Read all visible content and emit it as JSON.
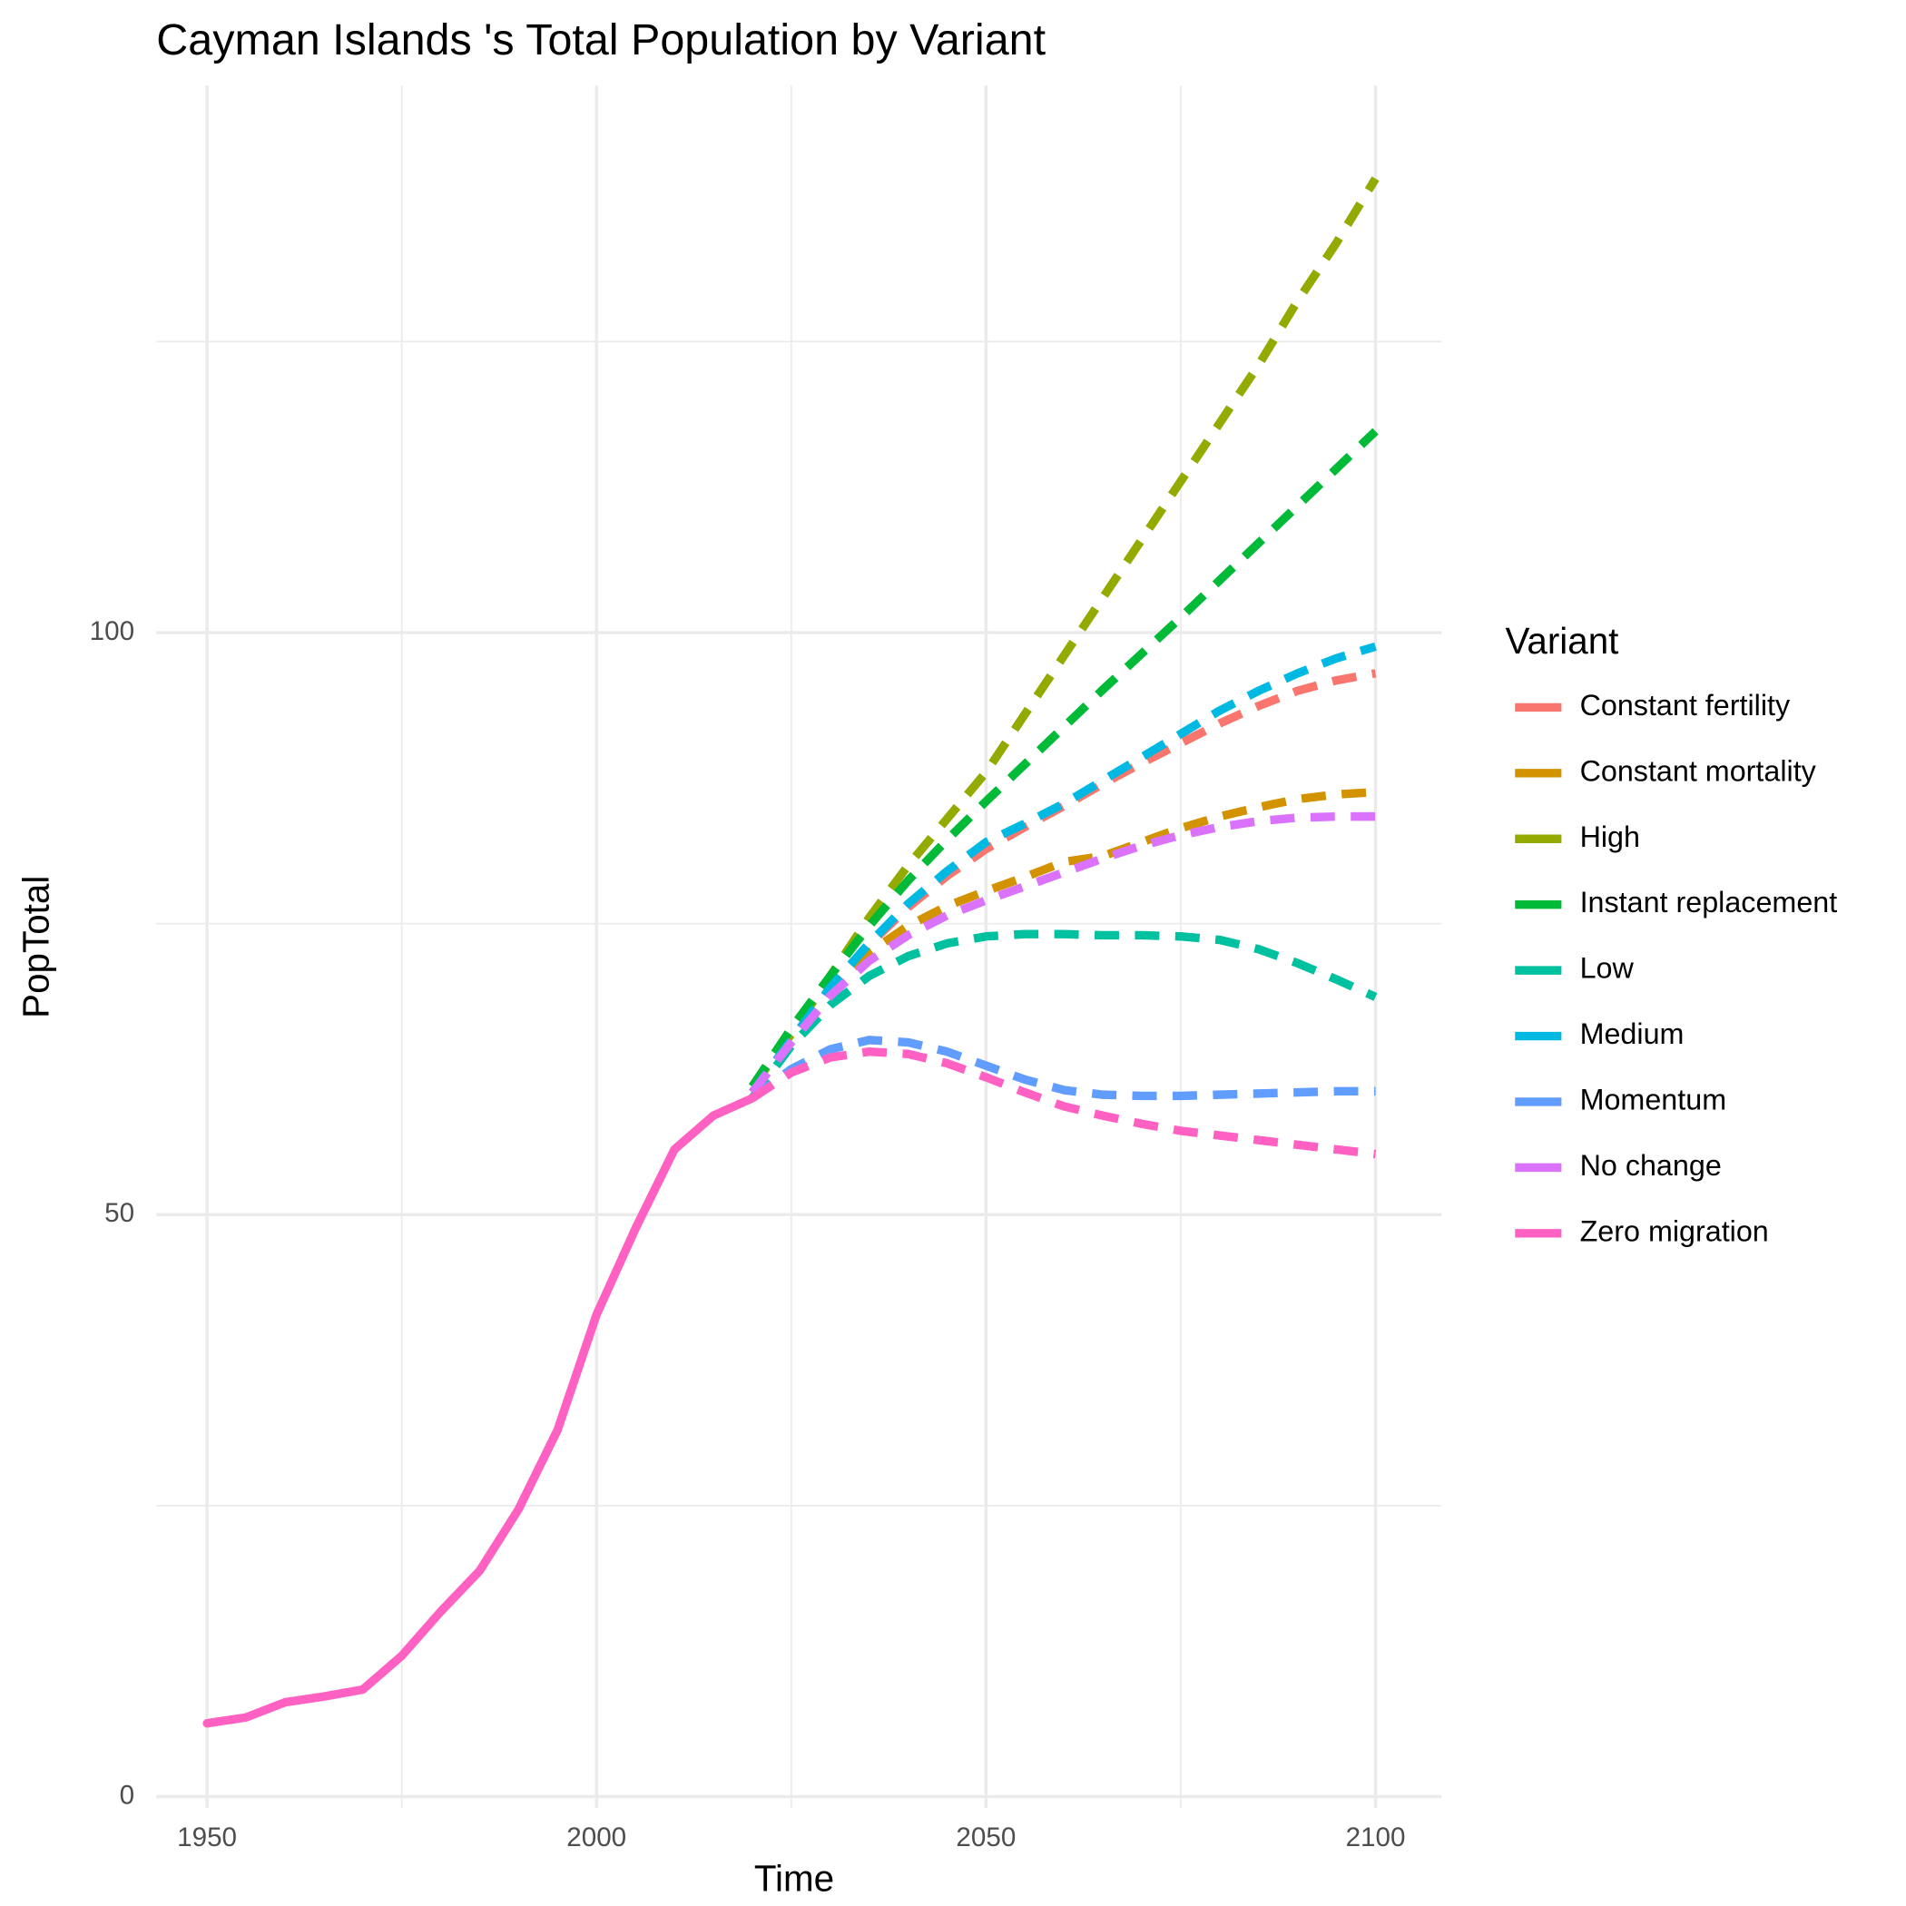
{
  "chart_data": {
    "type": "line",
    "title": "Cayman Islands 's Total Population by Variant",
    "x_label": "Time",
    "y_label": "PopTotal",
    "legend_title": "Variant",
    "legend_position": "right",
    "grid": true,
    "dashed_from": 2020,
    "xlim": [
      1943.5,
      2108.5
    ],
    "xticks": [
      1950,
      2000,
      2050,
      2100
    ],
    "xminor": [
      1975,
      2025,
      2075
    ],
    "ylim": [
      -1,
      147
    ],
    "yticks": [
      0,
      50,
      100
    ],
    "yminor": [
      25,
      75,
      125
    ],
    "x": [
      1950,
      1955,
      1960,
      1965,
      1970,
      1975,
      1980,
      1985,
      1990,
      1995,
      2000,
      2005,
      2010,
      2015,
      2020,
      2025,
      2030,
      2035,
      2040,
      2045,
      2050,
      2055,
      2060,
      2065,
      2070,
      2075,
      2080,
      2085,
      2090,
      2095,
      2100
    ],
    "series": [
      {
        "name": "Constant fertility",
        "color": "#F8766D",
        "values": [
          null,
          null,
          null,
          null,
          null,
          null,
          null,
          null,
          null,
          null,
          null,
          null,
          null,
          null,
          60.5,
          65,
          69.5,
          73.2,
          76.4,
          79.1,
          81.4,
          83.3,
          85.1,
          87,
          88.8,
          90.5,
          92.2,
          93.7,
          95,
          95.9,
          96.5
        ]
      },
      {
        "name": "Constant mortality",
        "color": "#D39200",
        "values": [
          null,
          null,
          null,
          null,
          null,
          null,
          null,
          null,
          null,
          null,
          null,
          null,
          null,
          null,
          60.5,
          65,
          69.3,
          72.5,
          74.8,
          76.5,
          77.8,
          79,
          80.3,
          80.8,
          82,
          83.2,
          84.2,
          85,
          85.7,
          86.1,
          86.3
        ]
      },
      {
        "name": "High",
        "color": "#93AA00",
        "values": [
          null,
          null,
          null,
          null,
          null,
          null,
          null,
          null,
          null,
          null,
          null,
          null,
          null,
          null,
          61,
          65.5,
          70.5,
          75.5,
          80,
          84,
          88,
          93,
          98,
          103,
          108,
          113,
          118,
          123,
          128.5,
          133.5,
          139
        ]
      },
      {
        "name": "Instant replacement",
        "color": "#00BA38",
        "values": [
          null,
          null,
          null,
          null,
          null,
          null,
          null,
          null,
          null,
          null,
          null,
          null,
          null,
          null,
          61,
          66,
          70.5,
          74.8,
          78.7,
          82.2,
          85.5,
          88.7,
          91.9,
          95.1,
          98.2,
          101.3,
          104.5,
          107.7,
          110.9,
          114.1,
          117.3
        ]
      },
      {
        "name": "Low",
        "color": "#00C19F",
        "values": [
          null,
          null,
          null,
          null,
          null,
          null,
          null,
          null,
          null,
          null,
          null,
          null,
          null,
          null,
          60,
          64.5,
          68,
          70.5,
          72.2,
          73.3,
          73.9,
          74.1,
          74.1,
          74,
          74,
          73.9,
          73.6,
          72.8,
          71.6,
          70.2,
          68.7
        ]
      },
      {
        "name": "Medium",
        "color": "#00B9E3",
        "values": [
          null,
          null,
          null,
          null,
          null,
          null,
          null,
          null,
          null,
          null,
          null,
          null,
          null,
          null,
          60.5,
          65,
          69.5,
          73.3,
          76.7,
          79.5,
          82,
          83.6,
          85.3,
          87.3,
          89.3,
          91.3,
          93.3,
          95,
          96.5,
          97.8,
          98.8
        ]
      },
      {
        "name": "Momentum",
        "color": "#619CFF",
        "values": [
          null,
          null,
          null,
          null,
          null,
          null,
          null,
          null,
          null,
          null,
          null,
          null,
          null,
          null,
          60,
          62.5,
          64.2,
          65,
          64.8,
          64,
          62.8,
          61.6,
          60.7,
          60.3,
          60.2,
          60.2,
          60.3,
          60.4,
          60.5,
          60.6,
          60.6
        ]
      },
      {
        "name": "No change",
        "color": "#DB72FB",
        "values": [
          null,
          null,
          null,
          null,
          null,
          null,
          null,
          null,
          null,
          null,
          null,
          null,
          null,
          null,
          60.5,
          64.8,
          68.8,
          71.8,
          74,
          75.7,
          77,
          78.2,
          79.4,
          80.6,
          81.7,
          82.6,
          83.3,
          83.8,
          84.1,
          84.2,
          84.2
        ]
      },
      {
        "name": "Zero migration",
        "color": "#FF61C3",
        "values": [
          6.3,
          6.8,
          8.1,
          8.6,
          9.2,
          12.1,
          15.9,
          19.4,
          24.7,
          31.5,
          41.4,
          48.8,
          55.6,
          58.5,
          60,
          62.2,
          63.5,
          64,
          63.8,
          63,
          61.8,
          60.5,
          59.3,
          58.5,
          57.8,
          57.2,
          56.8,
          56.4,
          56,
          55.6,
          55.2
        ]
      }
    ]
  }
}
